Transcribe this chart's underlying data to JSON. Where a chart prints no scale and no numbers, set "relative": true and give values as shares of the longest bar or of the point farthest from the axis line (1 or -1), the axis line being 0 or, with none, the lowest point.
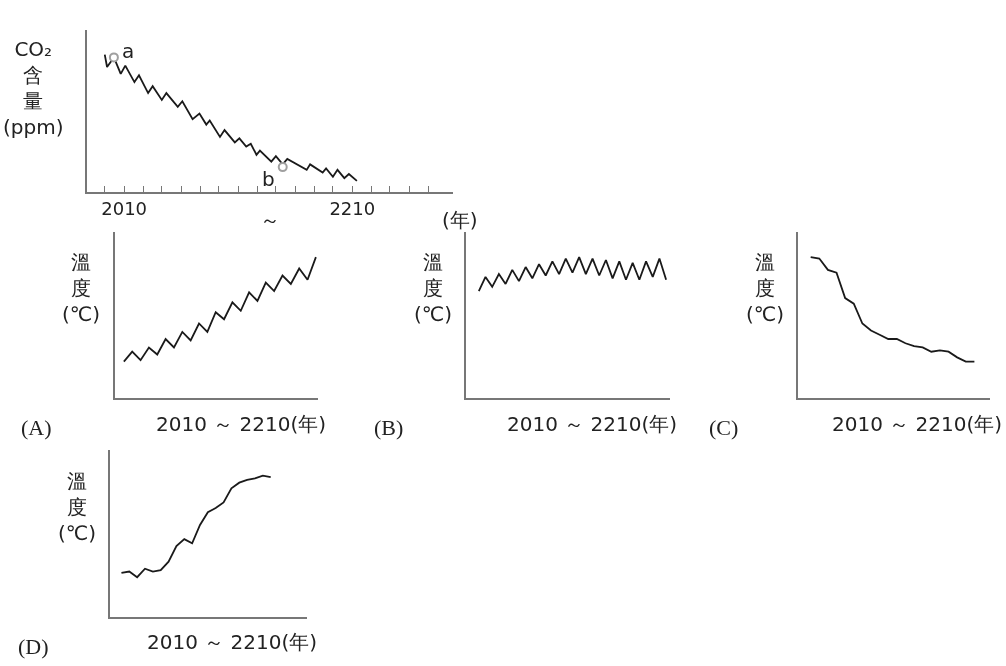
{
  "chart_data": [
    {
      "type": "line",
      "relative": true,
      "ylabel": "CO₂含量(ppm)",
      "xlim": [
        1977,
        2298
      ],
      "xticks": [
        {
          "value": 1993,
          "label": null
        },
        2010,
        {
          "value": 2027,
          "label": null
        },
        {
          "value": 2043,
          "label": null
        },
        {
          "value": 2060,
          "label": null
        },
        {
          "value": 2077,
          "label": null
        },
        {
          "value": 2093,
          "label": null
        },
        {
          "value": 2110,
          "label": null
        },
        {
          "value": 2127,
          "label": null
        },
        {
          "value": 2143,
          "label": null
        },
        {
          "value": 2160,
          "label": null
        },
        {
          "value": 2177,
          "label": null
        },
        {
          "value": 2193,
          "label": null
        },
        2210,
        {
          "value": 2227,
          "label": null
        },
        {
          "value": 2243,
          "label": null
        },
        {
          "value": 2260,
          "label": null
        },
        {
          "value": 2277,
          "label": null
        }
      ],
      "series": [
        {
          "type": "line",
          "color": "#1a1a1a",
          "marker": "none",
          "x": [
            1993,
            1995,
            2001,
            2007,
            2011,
            2019,
            2023,
            2031,
            2035,
            2043,
            2047,
            2057,
            2061,
            2070,
            2076,
            2082,
            2085,
            2094,
            2098,
            2107,
            2111,
            2117,
            2121,
            2126,
            2129,
            2139,
            2143,
            2149,
            2153,
            2170,
            2173,
            2184,
            2187,
            2193,
            2197,
            2203,
            2207,
            2214
          ],
          "values": [
            1.0,
            0.91,
            0.98,
            0.86,
            0.92,
            0.8,
            0.85,
            0.72,
            0.77,
            0.67,
            0.72,
            0.62,
            0.66,
            0.53,
            0.57,
            0.49,
            0.52,
            0.4,
            0.45,
            0.36,
            0.39,
            0.33,
            0.35,
            0.27,
            0.3,
            0.22,
            0.26,
            0.2,
            0.24,
            0.16,
            0.2,
            0.14,
            0.17,
            0.11,
            0.16,
            0.1,
            0.13,
            0.08
          ]
        },
        {
          "type": "scatter",
          "color": "#a0a0a0",
          "marker": "circle",
          "x": [
            2001,
            2149
          ],
          "values": [
            0.98,
            0.18
          ]
        }
      ],
      "annotations": [
        {
          "text": "a",
          "x": 2001,
          "y": 0.98
        },
        {
          "text": "b",
          "x": 2149,
          "y": 0.18
        },
        "～",
        "(年)"
      ]
    },
    {
      "type": "line",
      "relative": true,
      "ylabel": "溫度(℃)",
      "xlabel": "2010 ～ 2210(年)",
      "categories": [
        null,
        null,
        null,
        null,
        null,
        null,
        null,
        null,
        null,
        null,
        null,
        null,
        null,
        null,
        null,
        null,
        null,
        null,
        null,
        null,
        null,
        null,
        null,
        null
      ],
      "series": [
        {
          "color": "#1a1a1a",
          "values": [
            0.26,
            0.33,
            0.27,
            0.36,
            0.31,
            0.42,
            0.36,
            0.47,
            0.41,
            0.53,
            0.47,
            0.61,
            0.56,
            0.68,
            0.62,
            0.75,
            0.69,
            0.82,
            0.76,
            0.87,
            0.81,
            0.92,
            0.84,
            1.0
          ]
        }
      ],
      "annotations": [
        "(A)"
      ]
    },
    {
      "type": "line",
      "relative": true,
      "ylabel": "溫度(℃)",
      "xlabel": "2010 ～ 2210(年)",
      "categories": [
        null,
        null,
        null,
        null,
        null,
        null,
        null,
        null,
        null,
        null,
        null,
        null,
        null,
        null,
        null,
        null,
        null,
        null,
        null,
        null,
        null,
        null,
        null,
        null,
        null,
        null,
        null,
        null,
        null
      ],
      "series": [
        {
          "color": "#1a1a1a",
          "values": [
            0.76,
            0.86,
            0.79,
            0.88,
            0.81,
            0.91,
            0.83,
            0.93,
            0.85,
            0.95,
            0.87,
            0.97,
            0.88,
            0.99,
            0.89,
            1.0,
            0.88,
            0.99,
            0.87,
            0.98,
            0.85,
            0.97,
            0.84,
            0.96,
            0.84,
            0.97,
            0.86,
            0.99,
            0.84
          ]
        }
      ],
      "annotations": [
        "(B)"
      ]
    },
    {
      "type": "line",
      "relative": true,
      "ylabel": "溫度(℃)",
      "xlabel": "2010 ～ 2210(年)",
      "categories": [
        null,
        null,
        null,
        null,
        null,
        null,
        null,
        null,
        null,
        null,
        null,
        null,
        null,
        null,
        null,
        null,
        null,
        null,
        null,
        null
      ],
      "series": [
        {
          "color": "#1a1a1a",
          "values": [
            1.0,
            0.99,
            0.91,
            0.89,
            0.71,
            0.67,
            0.53,
            0.48,
            0.45,
            0.42,
            0.42,
            0.39,
            0.37,
            0.36,
            0.33,
            0.34,
            0.33,
            0.29,
            0.26,
            0.26
          ]
        }
      ],
      "annotations": [
        "(C)"
      ]
    },
    {
      "type": "line",
      "relative": true,
      "ylabel": "溫度(℃)",
      "xlabel": "2010 ～ 2210(年)",
      "categories": [
        null,
        null,
        null,
        null,
        null,
        null,
        null,
        null,
        null,
        null,
        null,
        null,
        null,
        null,
        null,
        null,
        null,
        null,
        null,
        null
      ],
      "series": [
        {
          "color": "#1a1a1a",
          "values": [
            0.31,
            0.32,
            0.28,
            0.34,
            0.32,
            0.33,
            0.39,
            0.5,
            0.55,
            0.52,
            0.65,
            0.74,
            0.77,
            0.81,
            0.91,
            0.95,
            0.97,
            0.98,
            1.0,
            0.99
          ]
        }
      ],
      "annotations": [
        "(D)"
      ]
    }
  ]
}
